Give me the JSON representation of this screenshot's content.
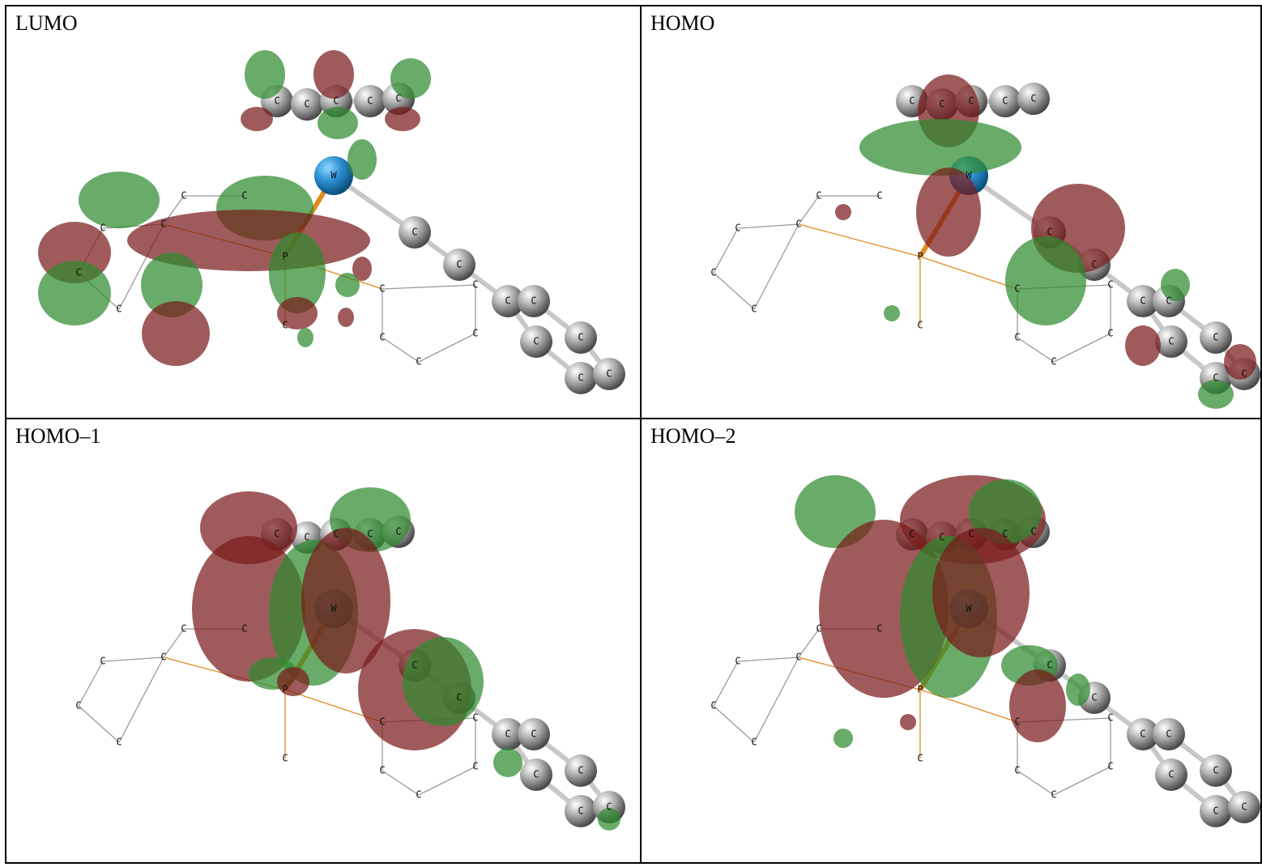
{
  "panels": [
    {
      "label": "LUMO",
      "atoms": [
        "C",
        "C",
        "C",
        "C",
        "C",
        "W",
        "C",
        "C",
        "C",
        "C",
        "C",
        "C",
        "C",
        "C",
        "P",
        "C",
        "C",
        "C",
        "C",
        "C",
        "C",
        "C",
        "C",
        "C",
        "C",
        "C",
        "C"
      ]
    },
    {
      "label": "HOMO",
      "atoms": [
        "C",
        "C",
        "C",
        "C",
        "C",
        "W",
        "C",
        "C",
        "C",
        "C",
        "C",
        "C",
        "C",
        "C",
        "P",
        "C",
        "C",
        "C",
        "C",
        "C",
        "C",
        "C",
        "C",
        "C",
        "C",
        "C",
        "C"
      ]
    },
    {
      "label": "HOMO–1",
      "atoms": [
        "C",
        "C",
        "C",
        "C",
        "C",
        "W",
        "C",
        "C",
        "C",
        "C",
        "C",
        "C",
        "C",
        "C",
        "P",
        "C",
        "C",
        "C",
        "C",
        "C",
        "C",
        "C",
        "C",
        "C",
        "C",
        "C",
        "C"
      ]
    },
    {
      "label": "HOMO–2",
      "atoms": [
        "C",
        "C",
        "C",
        "C",
        "C",
        "W",
        "C",
        "C",
        "C",
        "C",
        "C",
        "C",
        "C",
        "C",
        "P",
        "C",
        "C",
        "C",
        "C",
        "C",
        "C",
        "C",
        "C",
        "C",
        "C",
        "C",
        "C"
      ]
    }
  ]
}
